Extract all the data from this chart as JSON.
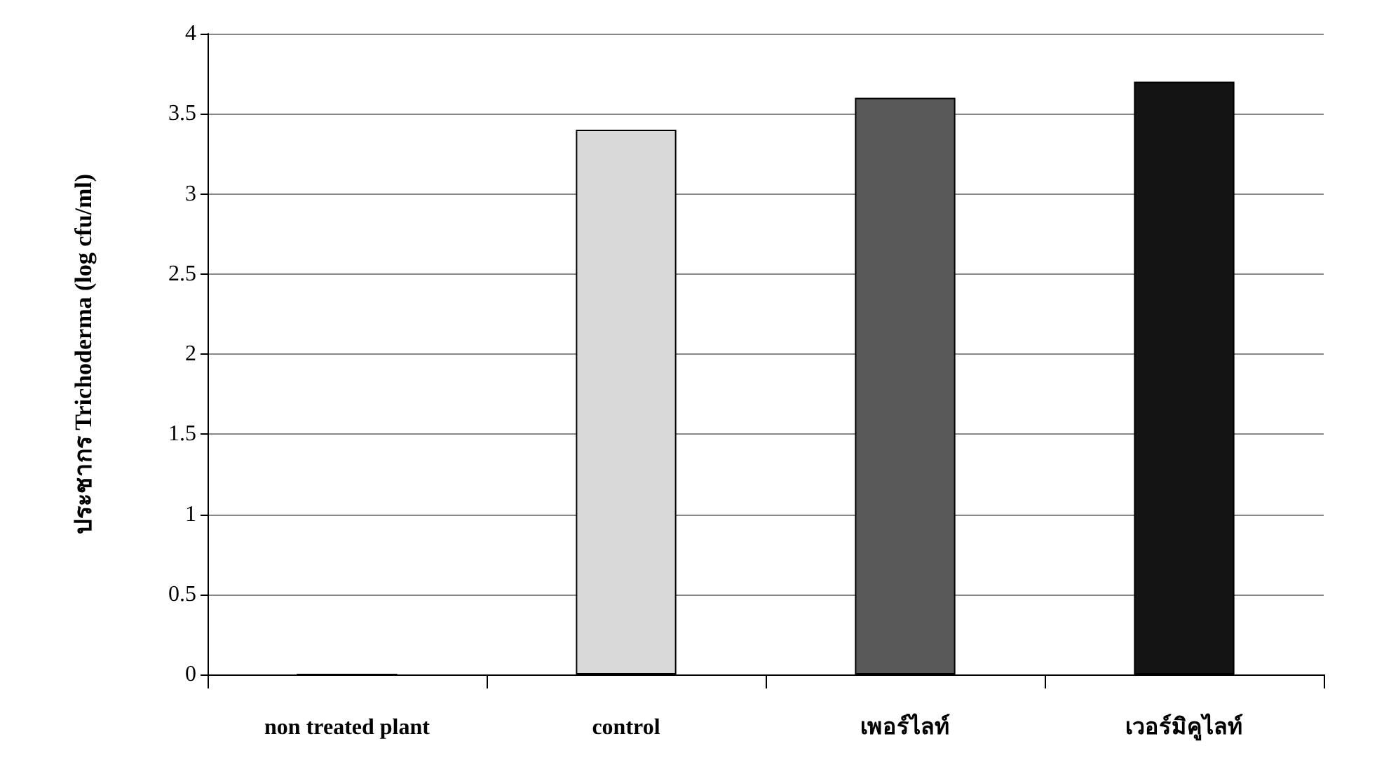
{
  "chart_data": {
    "type": "bar",
    "ylabel": "ประชากร Trichoderma (log cfu/ml)",
    "categories": [
      "non treated plant",
      "control",
      "เพอร์ไลท์",
      "เวอร์มิคูไลท์"
    ],
    "values": [
      0,
      3.4,
      3.6,
      3.7
    ],
    "colors": [
      "#ffffff",
      "#d9d9d9",
      "#595959",
      "#141414"
    ],
    "ylim": [
      0,
      4
    ],
    "yticks": [
      0,
      0.5,
      1,
      1.5,
      2,
      2.5,
      3,
      3.5,
      4
    ],
    "grid": "y"
  }
}
